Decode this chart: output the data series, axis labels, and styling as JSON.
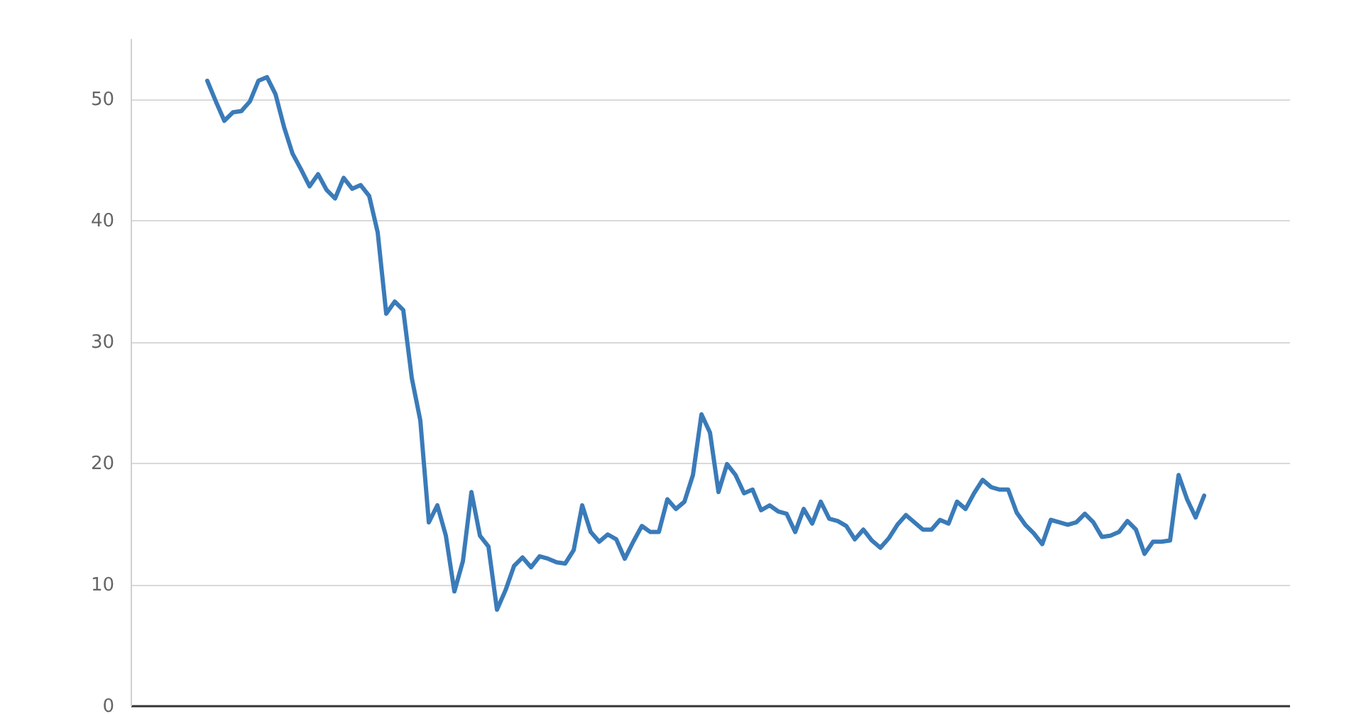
{
  "chart_data": {
    "type": "line",
    "categories": [
      null,
      null,
      null,
      null,
      null,
      null,
      null,
      null,
      null,
      null,
      null,
      null,
      null,
      null,
      null,
      null,
      null,
      null,
      null,
      null,
      null,
      null,
      null,
      null,
      null,
      null,
      null,
      null,
      null,
      null,
      null,
      null,
      null,
      null,
      null,
      null,
      null,
      null,
      null,
      null,
      null,
      null,
      null,
      null,
      null,
      null,
      null,
      null,
      null,
      null,
      null,
      null,
      null,
      null,
      null,
      null,
      null,
      null,
      null,
      null,
      null,
      null,
      null,
      null,
      null,
      null,
      null,
      null,
      null,
      null,
      null,
      null,
      null,
      null,
      null,
      null,
      null,
      null,
      null,
      null,
      null,
      null,
      null,
      null,
      null,
      null,
      null,
      null,
      null,
      null,
      null,
      null,
      null,
      null,
      null,
      null,
      null,
      null,
      null,
      null,
      null,
      null,
      null,
      null,
      null,
      null,
      null,
      null,
      null,
      null,
      null,
      null,
      null,
      null,
      null,
      null,
      null,
      null,
      null,
      null,
      null,
      null,
      null,
      null,
      null,
      null,
      null,
      null,
      null,
      null,
      null,
      null,
      null,
      null,
      null,
      null,
      null
    ],
    "series": [
      {
        "color": "#3a7bb9",
        "values": [
          null,
          null,
          null,
          null,
          null,
          null,
          null,
          null,
          null,
          51.5,
          49.8,
          48.2,
          48.9,
          49.0,
          49.8,
          51.5,
          51.8,
          50.4,
          47.7,
          45.5,
          44.2,
          42.8,
          43.8,
          42.5,
          41.8,
          43.5,
          42.6,
          42.9,
          42.0,
          39.0,
          32.3,
          33.3,
          32.6,
          27.0,
          23.5,
          15.1,
          16.5,
          14.0,
          9.4,
          11.9,
          17.6,
          14.0,
          13.1,
          7.9,
          9.5,
          11.5,
          12.2,
          11.4,
          12.3,
          12.1,
          11.8,
          11.7,
          12.8,
          16.5,
          14.3,
          13.5,
          14.1,
          13.7,
          12.1,
          13.5,
          14.8,
          14.3,
          14.3,
          17.0,
          16.2,
          16.8,
          19.0,
          24.0,
          22.5,
          17.6,
          19.9,
          19.0,
          17.5,
          17.8,
          16.1,
          16.5,
          16.0,
          15.8,
          14.3,
          16.2,
          15.0,
          16.8,
          15.4,
          15.2,
          14.8,
          13.7,
          14.5,
          13.6,
          13.0,
          13.8,
          14.9,
          15.7,
          15.1,
          14.5,
          14.5,
          15.3,
          15.0,
          16.8,
          16.2,
          17.5,
          18.6,
          18.0,
          17.8,
          17.8,
          15.9,
          14.9,
          14.2,
          13.3,
          15.3,
          15.1,
          14.9,
          15.1,
          15.8,
          15.1,
          13.9,
          14.0,
          14.3,
          15.2,
          14.5,
          12.5,
          13.5,
          13.5,
          13.6,
          19.0,
          17.0,
          15.5,
          17.3,
          null,
          null,
          null,
          null,
          null,
          null,
          null,
          null,
          null,
          null
        ]
      }
    ],
    "ylim": [
      0,
      55
    ],
    "yticks": [
      0,
      10,
      20,
      30,
      40,
      50
    ],
    "grid": "y",
    "tick_labels": "y"
  }
}
